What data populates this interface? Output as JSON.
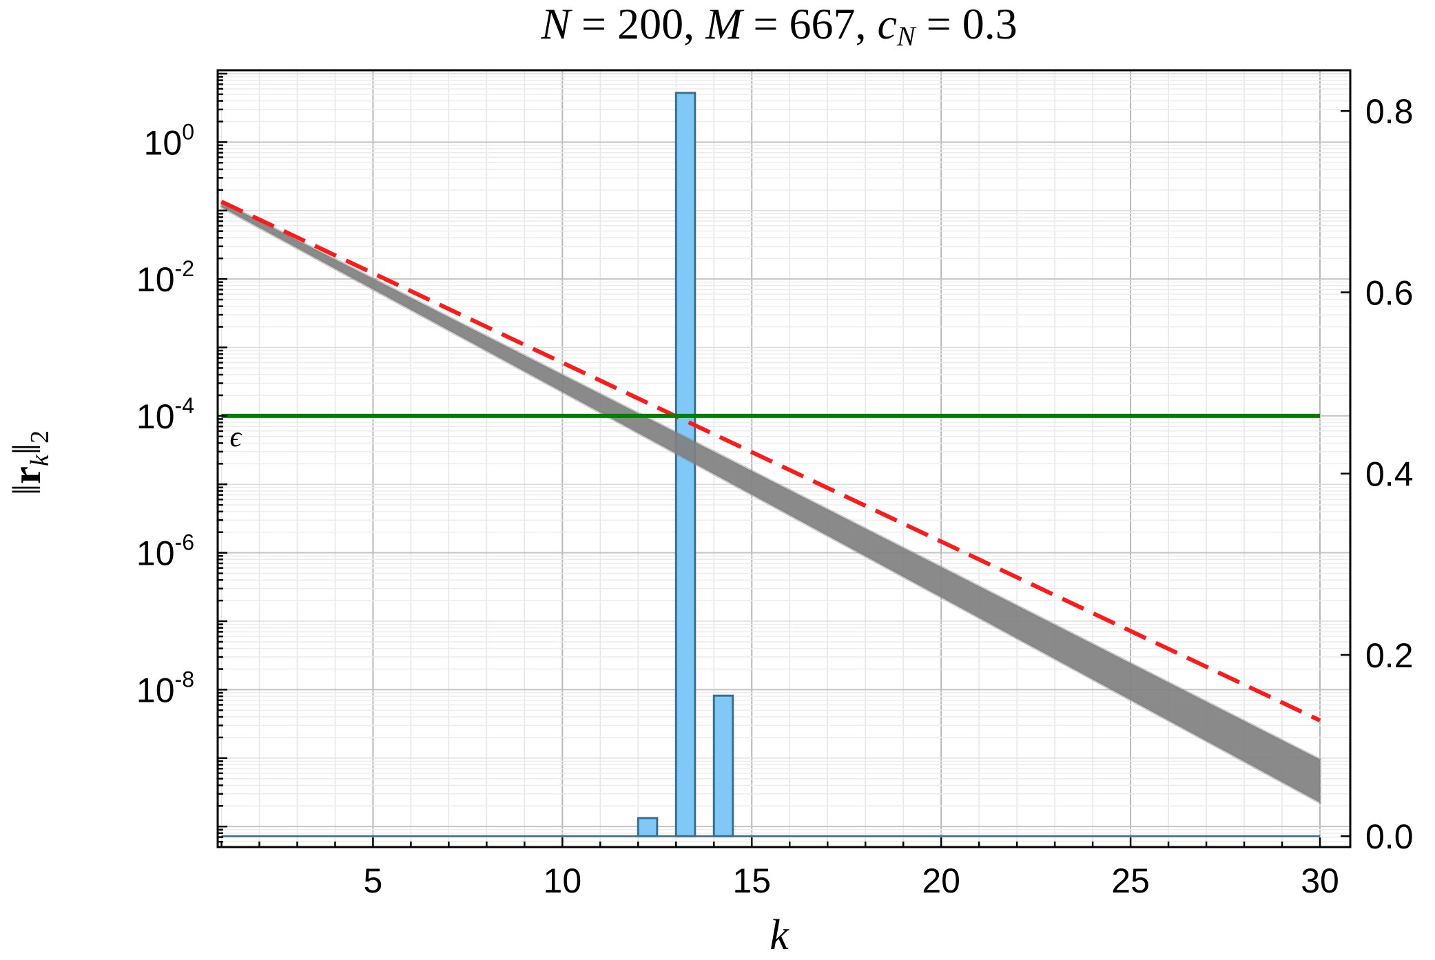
{
  "chart_data": {
    "type": "bar",
    "title_parts": {
      "n_label": "N",
      "n_value": "200",
      "m_label": "M",
      "m_value": "667",
      "c_label": "c",
      "c_sub": "N",
      "c_value": "0.3"
    },
    "xlabel": "k",
    "ylabel_parts": {
      "norm": "‖",
      "vec": "r",
      "sub_k": "k",
      "sub_2": "2"
    },
    "x_range": [
      0.9,
      30.8
    ],
    "left_y_log10_range": [
      -10.3,
      1.05
    ],
    "left_y_scale": "log",
    "right_y_range": [
      -0.012,
      0.845
    ],
    "grid": true,
    "x_ticks": [
      5,
      10,
      15,
      20,
      25,
      30
    ],
    "left_y_ticks": [
      {
        "exp": 0,
        "mantissa": "10",
        "power": "0"
      },
      {
        "exp": -2,
        "mantissa": "10",
        "power": "-2"
      },
      {
        "exp": -4,
        "mantissa": "10",
        "power": "-4"
      },
      {
        "exp": -6,
        "mantissa": "10",
        "power": "-6"
      },
      {
        "exp": -8,
        "mantissa": "10",
        "power": "-8"
      }
    ],
    "right_y_ticks": [
      {
        "value": 0.0,
        "label": "0.0"
      },
      {
        "value": 0.2,
        "label": "0.2"
      },
      {
        "value": 0.4,
        "label": "0.4"
      },
      {
        "value": 0.6,
        "label": "0.6"
      },
      {
        "value": 0.8,
        "label": "0.8"
      }
    ],
    "histogram": {
      "axis": "right",
      "bar_color": "#80c8f8",
      "edge_color": "#3a6e8c",
      "bars": [
        {
          "k": 12,
          "value": 0.02
        },
        {
          "k": 13,
          "value": 0.82
        },
        {
          "k": 14,
          "value": 0.155
        }
      ]
    },
    "residual_band": {
      "axis": "left",
      "color": "#808080",
      "k_start": 1,
      "k_end": 30,
      "upper_log10_start": -0.87,
      "upper_log10_end": -9.02,
      "lower_log10_start": -0.95,
      "lower_log10_end": -9.65
    },
    "bound_line": {
      "axis": "left",
      "color": "#ff1a1a",
      "style": "dashed",
      "k_start": 1,
      "k_end": 30,
      "log10_start": -0.87,
      "log10_end": -8.45
    },
    "epsilon_line": {
      "axis": "left",
      "color": "#008000",
      "log10_value": -4,
      "label": "ϵ"
    }
  }
}
